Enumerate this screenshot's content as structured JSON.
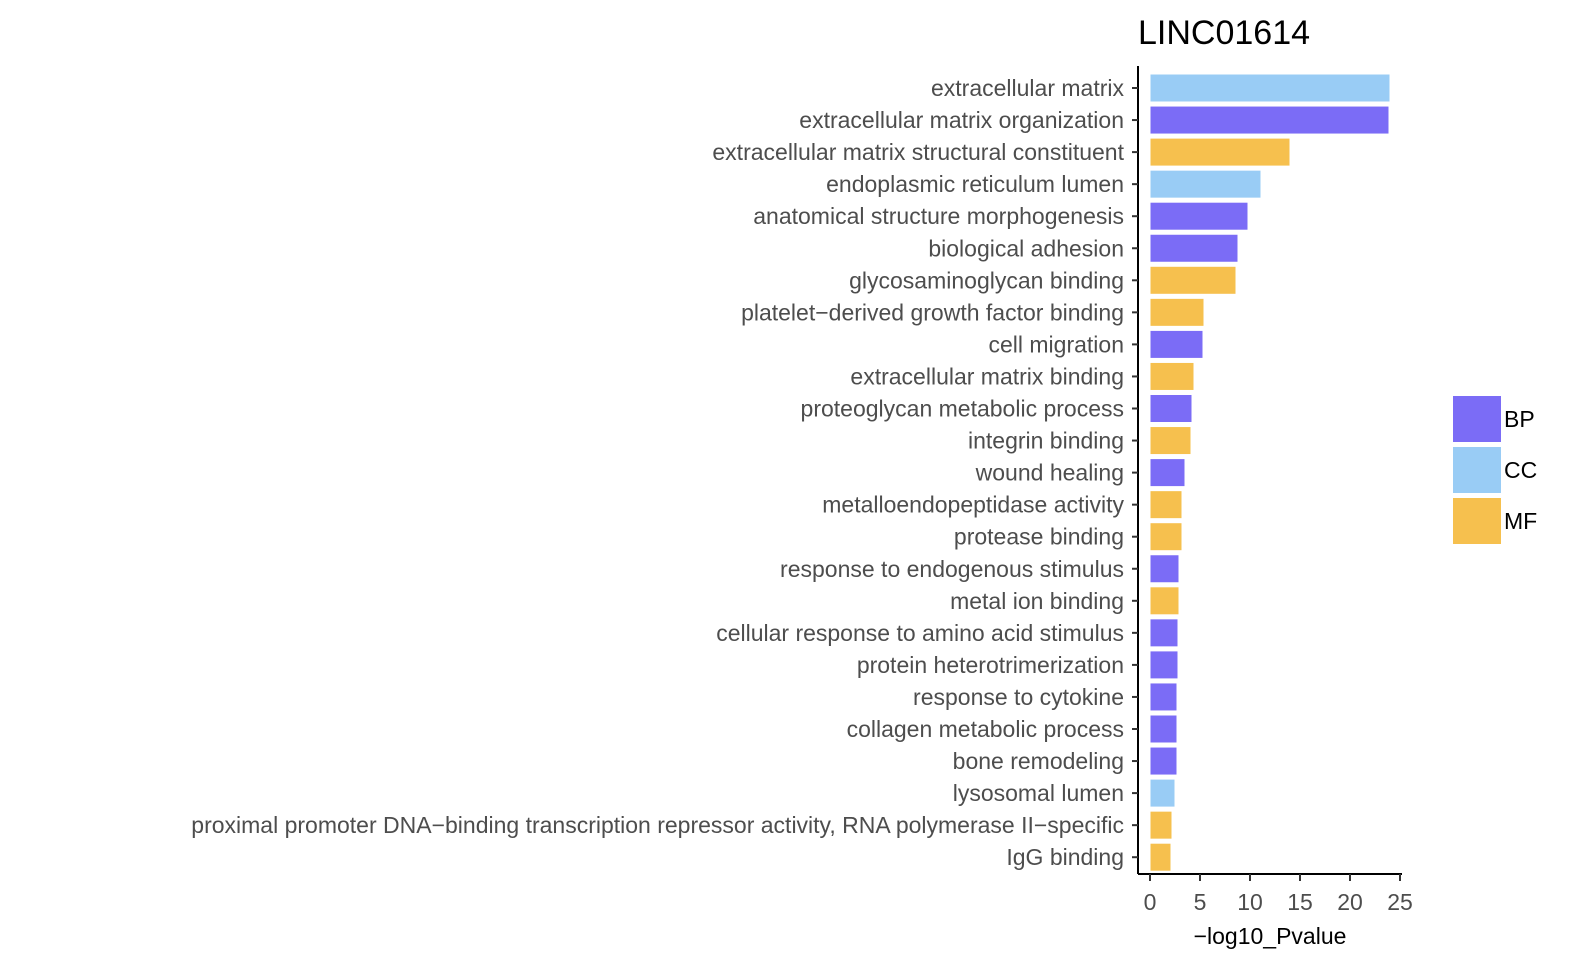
{
  "chart_data": {
    "type": "bar",
    "orientation": "horizontal",
    "title": "LINC01614",
    "xlabel": "−log10_Pvalue",
    "ylabel": "",
    "xlim": [
      0,
      25
    ],
    "xticks": [
      0,
      5,
      10,
      15,
      20,
      25
    ],
    "xtick_labels": [
      "0",
      "5",
      "10",
      "15",
      "20",
      "25"
    ],
    "grid": false,
    "legend_position": "right",
    "legend": [
      {
        "name": "BP",
        "color": "#7B6CF6"
      },
      {
        "name": "CC",
        "color": "#99CCF5"
      },
      {
        "name": "MF",
        "color": "#F6C04E"
      }
    ],
    "categories": [
      "extracellular matrix",
      "extracellular matrix organization",
      "extracellular matrix structural constituent",
      "endoplasmic reticulum lumen",
      "anatomical structure morphogenesis",
      "biological adhesion",
      "glycosaminoglycan binding",
      "platelet−derived growth factor binding",
      "cell migration",
      "extracellular matrix binding",
      "proteoglycan metabolic process",
      "integrin binding",
      "wound healing",
      "metalloendopeptidase activity",
      "protease binding",
      "response to endogenous stimulus",
      "metal ion binding",
      "cellular response to amino acid stimulus",
      "protein heterotrimerization",
      "response to cytokine",
      "collagen metabolic process",
      "bone remodeling",
      "lysosomal lumen",
      "proximal promoter DNA−binding transcription repressor activity, RNA polymerase II−specific",
      "IgG binding"
    ],
    "values": [
      24.0,
      23.9,
      14.0,
      11.1,
      9.8,
      8.8,
      8.6,
      5.4,
      5.3,
      4.4,
      4.2,
      4.1,
      3.5,
      3.2,
      3.2,
      2.9,
      2.9,
      2.8,
      2.8,
      2.7,
      2.7,
      2.7,
      2.5,
      2.2,
      2.1
    ],
    "groups": [
      "CC",
      "BP",
      "MF",
      "CC",
      "BP",
      "BP",
      "MF",
      "MF",
      "BP",
      "MF",
      "BP",
      "MF",
      "BP",
      "MF",
      "MF",
      "BP",
      "MF",
      "BP",
      "BP",
      "BP",
      "BP",
      "BP",
      "CC",
      "MF",
      "MF"
    ]
  }
}
